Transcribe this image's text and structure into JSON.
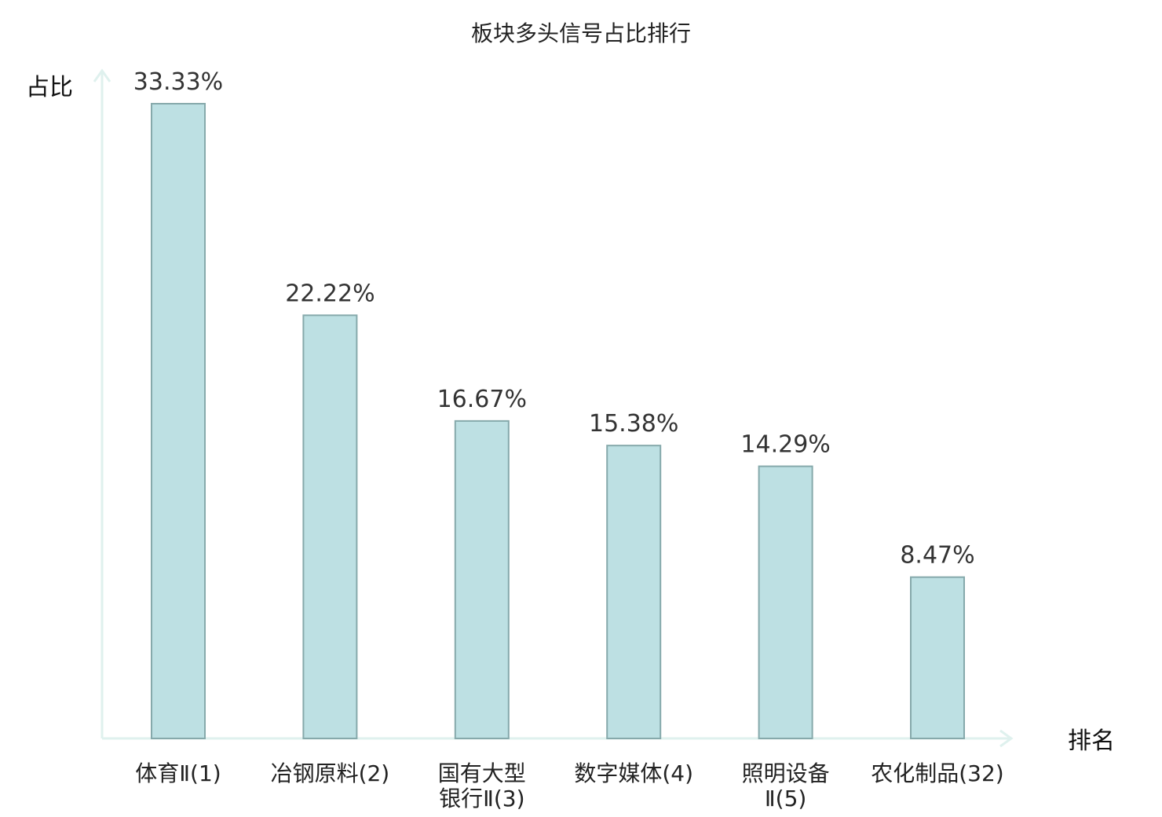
{
  "chart_data": {
    "type": "bar",
    "title": "板块多头信号占比排行",
    "xlabel": "排名",
    "ylabel": "占比",
    "ylim": [
      0,
      35
    ],
    "grid": false,
    "categories": [
      {
        "lines": [
          "体育Ⅱ(1)"
        ],
        "highlight": false
      },
      {
        "lines": [
          "冶钢原料(2)"
        ],
        "highlight": false
      },
      {
        "lines": [
          "国有大型",
          "银行Ⅱ(3)"
        ],
        "highlight": false
      },
      {
        "lines": [
          "数字媒体(4)"
        ],
        "highlight": false
      },
      {
        "lines": [
          "照明设备",
          "Ⅱ(5)"
        ],
        "highlight": false
      },
      {
        "lines": [
          "农化制品(32)"
        ],
        "highlight": true
      }
    ],
    "values": [
      33.33,
      22.22,
      16.67,
      15.38,
      14.29,
      8.47
    ],
    "value_labels": [
      "33.33%",
      "22.22%",
      "16.67%",
      "15.38%",
      "14.29%",
      "8.47%"
    ],
    "colors": {
      "bar_fill": "#bde0e3",
      "bar_stroke": "#86a9ab",
      "axis": "#dff1ee",
      "highlight_text": "#e00000"
    }
  }
}
